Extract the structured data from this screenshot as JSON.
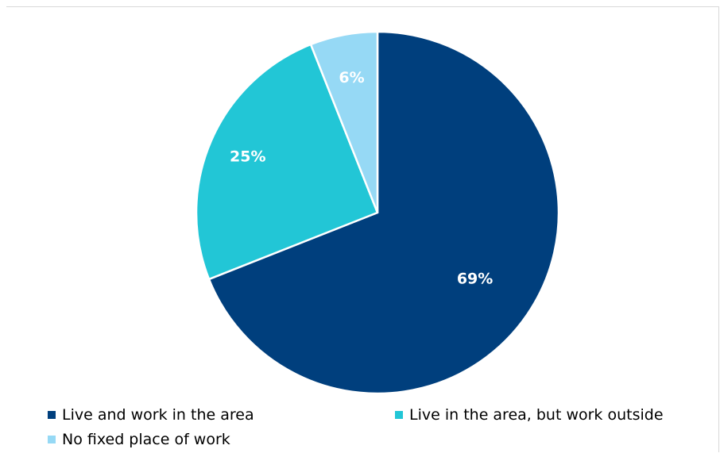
{
  "chart_data": {
    "type": "pie",
    "start_angle_deg": 0,
    "direction": "clockwise",
    "slices": [
      {
        "label": "Live and work in the area",
        "value": 69,
        "value_label": "69%",
        "color": "#003f7d"
      },
      {
        "label": "Live in the area, but work outside",
        "value": 25,
        "value_label": "25%",
        "color": "#22c6d6"
      },
      {
        "label": "No fixed place of work",
        "value": 6,
        "value_label": "6%",
        "color": "#96d9f5"
      }
    ],
    "legend_position": "bottom",
    "title": ""
  }
}
